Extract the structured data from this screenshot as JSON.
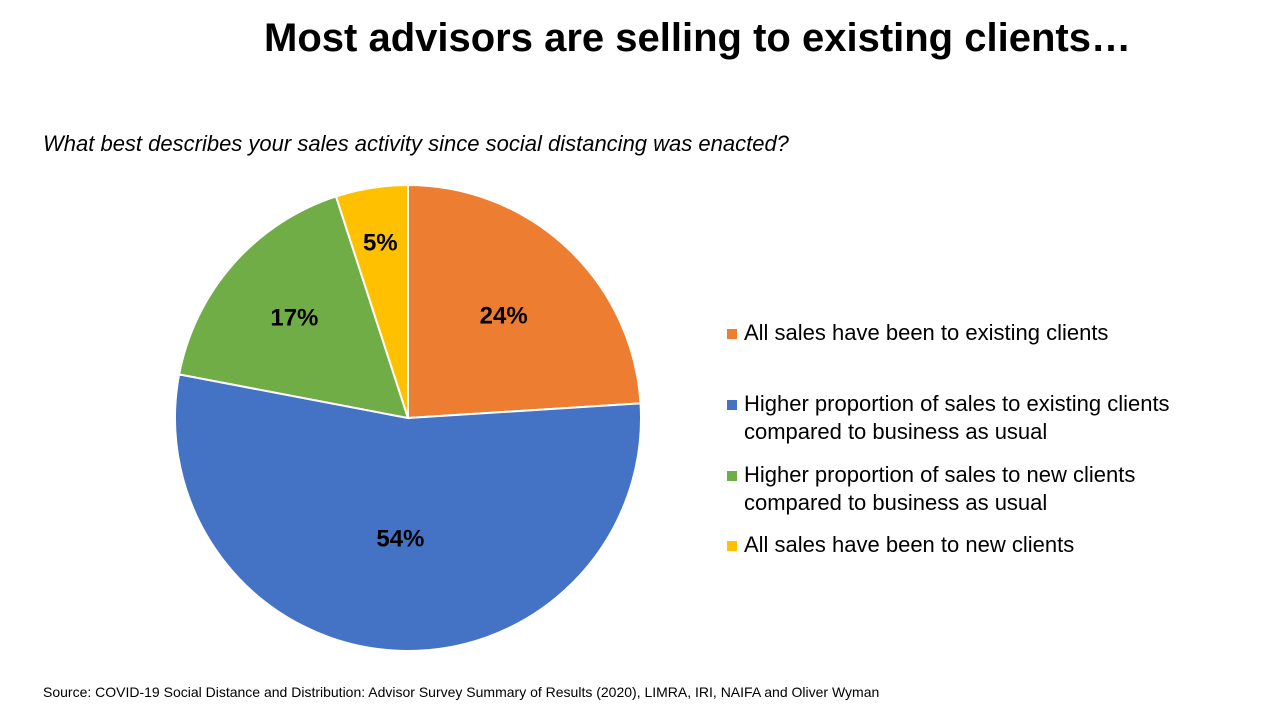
{
  "title": "Most advisors are selling to existing clients…",
  "subtitle": "What best describes your sales activity since social distancing was enacted?",
  "source": "Source: COVID-19 Social Distance and Distribution: Advisor Survey Summary of Results (2020), LIMRA, IRI, NAIFA and Oliver Wyman",
  "chart_data": {
    "type": "pie",
    "title": "Most advisors are selling to existing clients…",
    "subtitle": "What best describes your sales activity since social distancing was enacted?",
    "legend_position": "right",
    "slices": [
      {
        "label": "All sales have been to existing clients",
        "value": 24,
        "display": "24%",
        "color": "#ED7D31"
      },
      {
        "label": "Higher proportion of sales to existing clients compared to business as usual",
        "value": 54,
        "display": "54%",
        "color": "#4472C4"
      },
      {
        "label": "Higher proportion of sales to new clients compared to business as usual",
        "value": 17,
        "display": "17%",
        "color": "#70AD47"
      },
      {
        "label": "All sales have been to new clients",
        "value": 5,
        "display": "5%",
        "color": "#FFC000"
      }
    ]
  }
}
